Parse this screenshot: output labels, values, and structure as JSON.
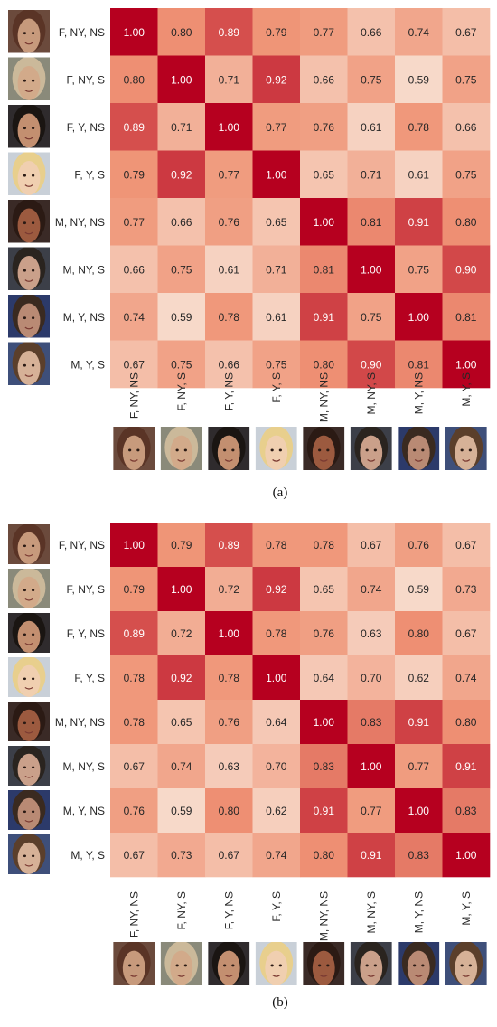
{
  "labels": [
    "F, NY, NS",
    "F, NY, S",
    "F, Y, NS",
    "F, Y, S",
    "M, NY, NS",
    "M, NY, S",
    "M, Y, NS",
    "M, Y, S"
  ],
  "face_icons": [
    "face-female-older-brunette-icon",
    "face-female-older-blonde-icon",
    "face-female-young-dark-hair-icon",
    "face-female-young-blonde-icon",
    "face-male-older-icon",
    "face-male-older-heavy-icon",
    "face-male-young-icon",
    "face-male-young-boy-icon"
  ],
  "face_colors": {
    "skin": [
      "#c79a7c",
      "#d2aa8a",
      "#c38f70",
      "#f0cfb0",
      "#9c5a3f",
      "#caa08a",
      "#b98a74",
      "#d6b197"
    ],
    "hair": [
      "#5a3426",
      "#cbb99a",
      "#1a1512",
      "#e8cf8d",
      "#2b1a14",
      "#2a241f",
      "#3a2a20",
      "#5b3f2b"
    ],
    "bg": [
      "#6b4a3c",
      "#8a8a7a",
      "#2f2b2d",
      "#c9d0d8",
      "#3a2a26",
      "#3c3f48",
      "#2c3a6a",
      "#3e4f7a"
    ]
  },
  "color_scale": {
    "low": "#f7d9c9",
    "mid": "#ef9375",
    "high": "#b6001f",
    "min": 0.59,
    "max": 1.0
  },
  "chart_data": [
    {
      "type": "heatmap",
      "caption": "(a)",
      "rows": [
        "F, NY, NS",
        "F, NY, S",
        "F, Y, NS",
        "F, Y, S",
        "M, NY, NS",
        "M, NY, S",
        "M, Y, NS",
        "M, Y, S"
      ],
      "cols": [
        "F, NY, NS",
        "F, NY, S",
        "F, Y, NS",
        "F, Y, S",
        "M, NY, NS",
        "M, NY, S",
        "M, Y, NS",
        "M, Y, S"
      ],
      "values": [
        [
          1.0,
          0.8,
          0.89,
          0.79,
          0.77,
          0.66,
          0.74,
          0.67
        ],
        [
          0.8,
          1.0,
          0.71,
          0.92,
          0.66,
          0.75,
          0.59,
          0.75
        ],
        [
          0.89,
          0.71,
          1.0,
          0.77,
          0.76,
          0.61,
          0.78,
          0.66
        ],
        [
          0.79,
          0.92,
          0.77,
          1.0,
          0.65,
          0.71,
          0.61,
          0.75
        ],
        [
          0.77,
          0.66,
          0.76,
          0.65,
          1.0,
          0.81,
          0.91,
          0.8
        ],
        [
          0.66,
          0.75,
          0.61,
          0.71,
          0.81,
          1.0,
          0.75,
          0.9
        ],
        [
          0.74,
          0.59,
          0.78,
          0.61,
          0.91,
          0.75,
          1.0,
          0.81
        ],
        [
          0.67,
          0.75,
          0.66,
          0.75,
          0.8,
          0.9,
          0.81,
          1.0
        ]
      ]
    },
    {
      "type": "heatmap",
      "caption": "(b)",
      "rows": [
        "F, NY, NS",
        "F, NY, S",
        "F, Y, NS",
        "F, Y, S",
        "M, NY, NS",
        "M, NY, S",
        "M, Y, NS",
        "M, Y, S"
      ],
      "cols": [
        "F, NY, NS",
        "F, NY, S",
        "F, Y, NS",
        "F, Y, S",
        "M, NY, NS",
        "M, NY, S",
        "M, Y, NS",
        "M, Y, S"
      ],
      "values": [
        [
          1.0,
          0.79,
          0.89,
          0.78,
          0.78,
          0.67,
          0.76,
          0.67
        ],
        [
          0.79,
          1.0,
          0.72,
          0.92,
          0.65,
          0.74,
          0.59,
          0.73
        ],
        [
          0.89,
          0.72,
          1.0,
          0.78,
          0.76,
          0.63,
          0.8,
          0.67
        ],
        [
          0.78,
          0.92,
          0.78,
          1.0,
          0.64,
          0.7,
          0.62,
          0.74
        ],
        [
          0.78,
          0.65,
          0.76,
          0.64,
          1.0,
          0.83,
          0.91,
          0.8
        ],
        [
          0.67,
          0.74,
          0.63,
          0.7,
          0.83,
          1.0,
          0.77,
          0.91
        ],
        [
          0.76,
          0.59,
          0.8,
          0.62,
          0.91,
          0.77,
          1.0,
          0.83
        ],
        [
          0.67,
          0.73,
          0.67,
          0.74,
          0.8,
          0.91,
          0.83,
          1.0
        ]
      ]
    }
  ]
}
